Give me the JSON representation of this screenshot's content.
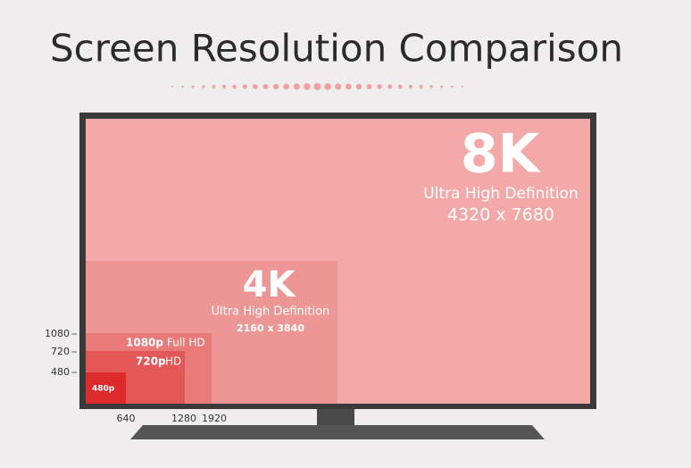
{
  "title": "Screen Resolution Comparison",
  "screens": [
    {
      "name": "8K",
      "definition": "Ultra High Definition",
      "resolution": "4320 x 7680"
    },
    {
      "name": "4K",
      "definition": "Ultra High Definition",
      "resolution": "2160 x 3840"
    },
    {
      "name": "1080p",
      "definition": "Full HD"
    },
    {
      "name": "720p",
      "definition": "HD"
    },
    {
      "name": "480p"
    }
  ],
  "y_labels": [
    "1080",
    "720",
    "480"
  ],
  "x_labels": [
    "640",
    "1280",
    "1920"
  ]
}
